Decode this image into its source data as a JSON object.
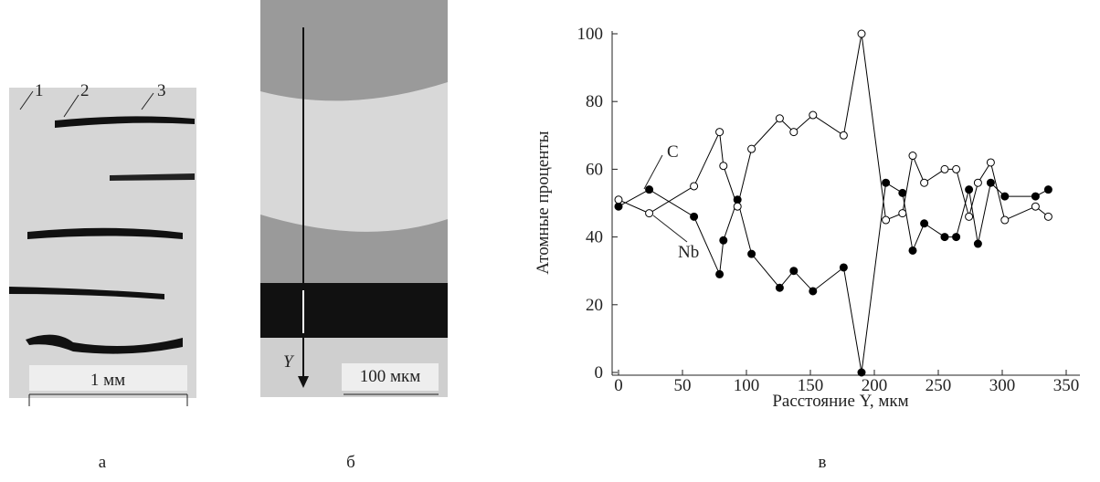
{
  "chart_data": {
    "type": "line",
    "x": [
      0,
      24,
      59,
      79,
      82,
      93,
      104,
      126,
      137,
      152,
      176,
      190,
      209,
      222,
      230,
      239,
      255,
      264,
      274,
      281,
      291,
      302,
      326,
      336
    ],
    "series": [
      {
        "name": "C",
        "color": "#000000",
        "marker": "filled",
        "values": [
          49,
          54,
          46,
          29,
          39,
          51,
          35,
          25,
          30,
          24,
          31,
          0,
          56,
          53,
          36,
          44,
          40,
          40,
          54,
          38,
          56,
          52,
          52,
          54
        ]
      },
      {
        "name": "Nb",
        "color": "#000000",
        "marker": "open",
        "values": [
          51,
          47,
          55,
          71,
          61,
          49,
          66,
          75,
          71,
          76,
          70,
          100,
          45,
          47,
          64,
          56,
          60,
          60,
          46,
          56,
          62,
          45,
          49,
          46
        ]
      }
    ],
    "xlabel": "Расстояние Y, мкм",
    "ylabel": "Атомные проценты",
    "xlim": [
      0,
      350
    ],
    "xticks": [
      0,
      50,
      100,
      150,
      200,
      250,
      300,
      350
    ],
    "ylim": [
      0,
      100
    ],
    "yticks": [
      0,
      20,
      40,
      60,
      80,
      100
    ],
    "grid": false
  },
  "panels": {
    "a": {
      "label": "а",
      "markers": [
        "1",
        "2",
        "3"
      ],
      "scale": "1 мм"
    },
    "b": {
      "label": "б",
      "axis": "Y",
      "scale": "100 мкм"
    },
    "c": {
      "label": "в"
    }
  }
}
